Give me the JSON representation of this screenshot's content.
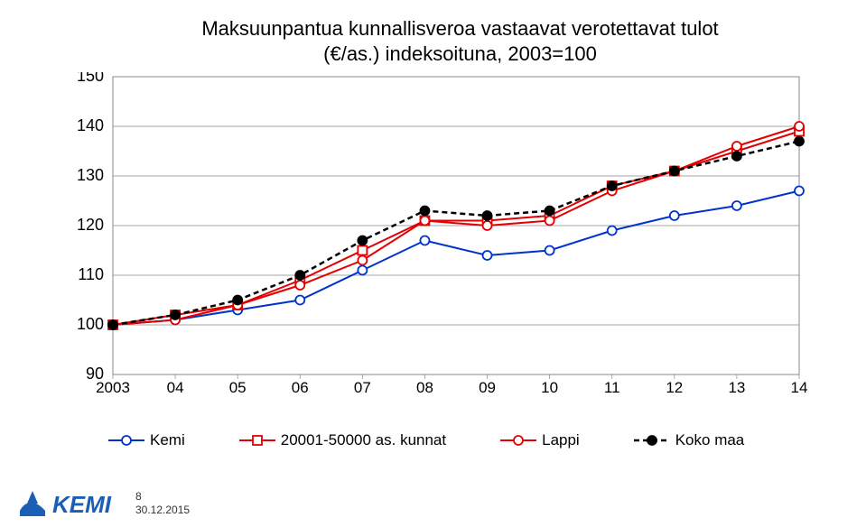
{
  "title_line1": "Maksuunpantua kunnallisveroa vastaavat verotettavat tulot",
  "title_line2": "(€/as.) indeksoituna, 2003=100",
  "chart": {
    "type": "line",
    "background_color": "#ffffff",
    "border_color": "#888888",
    "grid_color": "#888888",
    "ylim": [
      90,
      150
    ],
    "ytick_step": 10,
    "yticks": [
      90,
      100,
      110,
      120,
      130,
      140,
      150
    ],
    "xlabels": [
      "2003",
      "04",
      "05",
      "06",
      "07",
      "08",
      "09",
      "10",
      "11",
      "12",
      "13",
      "14"
    ],
    "series": [
      {
        "name": "Kemi",
        "color": "#0033cc",
        "marker_fill": "#ffffff",
        "marker_stroke": "#0033cc",
        "linewidth": 2,
        "dash": null,
        "marker": "circle",
        "marker_size": 5,
        "values": [
          100,
          101,
          103,
          105,
          111,
          117,
          114,
          115,
          119,
          122,
          124,
          127
        ]
      },
      {
        "name": "20001-50000 as. kunnat",
        "color": "#e30000",
        "marker_fill": "#ffffff",
        "marker_stroke": "#e30000",
        "linewidth": 2,
        "dash": null,
        "marker": "square",
        "marker_size": 5,
        "values": [
          100,
          102,
          104,
          109,
          115,
          121,
          121,
          122,
          128,
          131,
          135,
          139
        ]
      },
      {
        "name": "Lappi",
        "color": "#e30000",
        "marker_fill": "#ffffff",
        "marker_stroke": "#e30000",
        "linewidth": 2,
        "dash": null,
        "marker": "circle",
        "marker_size": 5,
        "values": [
          100,
          101,
          104,
          108,
          113,
          121,
          120,
          121,
          127,
          131,
          136,
          140
        ]
      },
      {
        "name": "Koko maa",
        "color": "#000000",
        "marker_fill": "#000000",
        "marker_stroke": "#000000",
        "linewidth": 2.5,
        "dash": "6,4",
        "marker": "circle",
        "marker_size": 5,
        "values": [
          100,
          102,
          105,
          110,
          117,
          123,
          122,
          123,
          128,
          131,
          134,
          137
        ]
      }
    ],
    "label_fontsize": 18,
    "tick_fontsize": 17
  },
  "legend": {
    "items": [
      {
        "label": "Kemi"
      },
      {
        "label": "20001-50000 as. kunnat"
      },
      {
        "label": "Lappi"
      },
      {
        "label": "Koko maa"
      }
    ]
  },
  "footer": {
    "page_number": "8",
    "date": "30.12.2015",
    "logo_text": "KEMI",
    "logo_color": "#1a5fb4"
  }
}
